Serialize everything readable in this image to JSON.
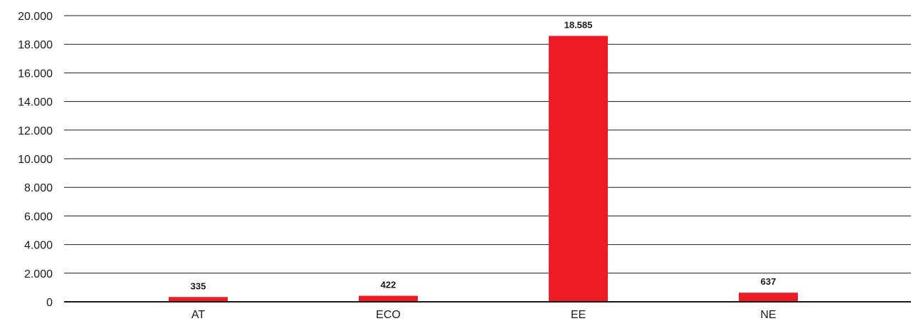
{
  "chart_data": {
    "type": "bar",
    "title": "",
    "xlabel": "",
    "ylabel": "",
    "categories": [
      "AT",
      "ECO",
      "EE",
      "NE"
    ],
    "values": [
      335,
      422,
      18585,
      637
    ],
    "value_labels": [
      "335",
      "422",
      "18.585",
      "637"
    ],
    "ylim": [
      0,
      20000
    ],
    "y_ticks": [
      0,
      2000,
      4000,
      6000,
      8000,
      10000,
      12000,
      14000,
      16000,
      18000,
      20000
    ],
    "y_tick_labels": [
      "0",
      "2.000",
      "4.000",
      "6.000",
      "8.000",
      "10.000",
      "12.000",
      "14.000",
      "16.000",
      "18.000",
      "20.000"
    ],
    "grid": true,
    "legend": "none",
    "colors": {
      "bar": "#ed1c24",
      "grid": "#1a1a1a",
      "text": "#1a1a1a"
    }
  }
}
